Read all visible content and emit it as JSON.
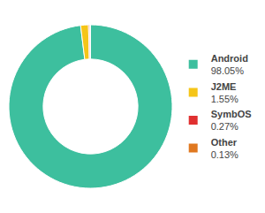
{
  "chart_data": {
    "type": "pie",
    "categories": [
      "Android",
      "J2ME",
      "SymbOS",
      "Other"
    ],
    "values": [
      98.05,
      1.55,
      0.27,
      0.13
    ],
    "value_labels": [
      "98.05%",
      "1.55%",
      "0.27%",
      "0.13%"
    ],
    "colors": [
      "#3dbf9e",
      "#f5c518",
      "#e03030",
      "#e07820"
    ],
    "legend": "right"
  }
}
